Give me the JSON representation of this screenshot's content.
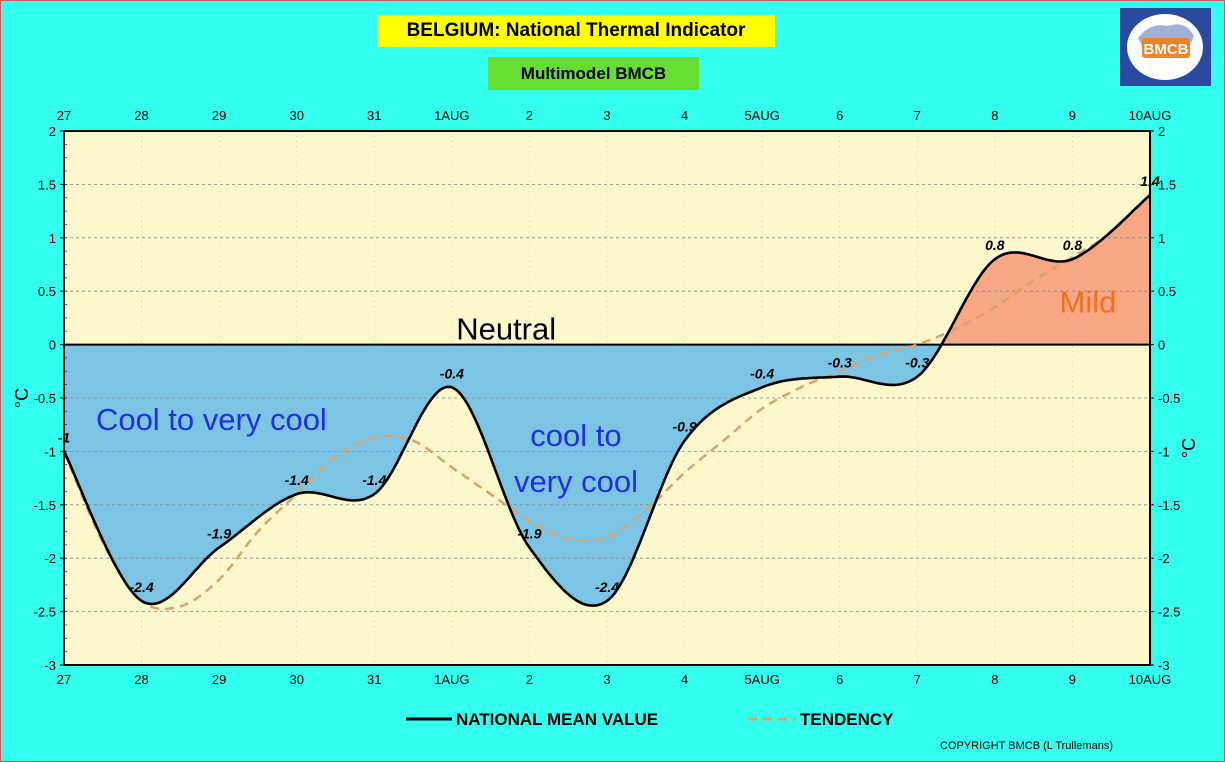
{
  "header": {
    "title": "BELGIUM:  National Thermal Indicator",
    "subtitle": "Multimodel BMCB",
    "logo_text": "BMCB"
  },
  "footer": {
    "copyright": "COPYRIGHT BMCB (L Trullemans)"
  },
  "colors": {
    "background": "#33ffee",
    "plot_bg": "#fdf8cc",
    "cool_fill": "#7cc4e4",
    "mild_fill": "#f7a784",
    "main_line": "#000000",
    "tendency_line": "#d9a46a",
    "annotation_cool": "#2030e0",
    "annotation_mild": "#f07020"
  },
  "chart_data": {
    "type": "line",
    "categories": [
      "27",
      "28",
      "29",
      "30",
      "31",
      "1AUG",
      "2",
      "3",
      "4",
      "5AUG",
      "6",
      "7",
      "8",
      "9",
      "10AUG"
    ],
    "ylim": [
      -3,
      2
    ],
    "yticks": [
      2,
      1.5,
      1,
      0.5,
      0,
      -0.5,
      -1,
      -1.5,
      -2,
      -2.5,
      -3
    ],
    "ylabel": "°C",
    "grid": true,
    "legend_position": "bottom",
    "series": [
      {
        "name": "NATIONAL MEAN VALUE",
        "x": [
          0,
          1,
          2,
          3,
          4,
          5,
          6,
          7,
          8,
          9,
          10,
          11,
          12,
          13,
          14
        ],
        "values": [
          -1,
          -2.4,
          -1.9,
          -1.4,
          -1.4,
          -0.4,
          -1.9,
          -2.4,
          -0.9,
          -0.4,
          -0.3,
          -0.3,
          0.8,
          0.8,
          1.4
        ],
        "labels": [
          "-1",
          "-2.4",
          "-1.9",
          "-1.4",
          "-1.4",
          "-0.4",
          "-1.9",
          "-2.4",
          "-0.9",
          "-0.4",
          "-0.3",
          "-0.3",
          "0.8",
          "0.8",
          "1.4"
        ]
      },
      {
        "name": "TENDENCY",
        "x": [
          0,
          0.5,
          1,
          1.5,
          2,
          2.5,
          3,
          3.5,
          4,
          4.5,
          5,
          5.5,
          6,
          6.5,
          7,
          7.5,
          8,
          8.5,
          9,
          9.5,
          10,
          10.5,
          11,
          11.5,
          12,
          12.5,
          13,
          13.5,
          14
        ],
        "values": [
          -1.0,
          -1.85,
          -2.4,
          -2.45,
          -2.2,
          -1.75,
          -1.4,
          -1.05,
          -0.87,
          -0.9,
          -1.15,
          -1.4,
          -1.65,
          -1.82,
          -1.8,
          -1.55,
          -1.2,
          -0.9,
          -0.6,
          -0.4,
          -0.25,
          -0.1,
          0.0,
          0.15,
          0.35,
          0.6,
          0.82,
          1.05,
          1.4
        ]
      }
    ],
    "annotations": [
      {
        "text": "Neutral",
        "x": 5.7,
        "y": 0.05,
        "color": "#000000"
      },
      {
        "text": "Cool to very cool",
        "x": 1.9,
        "y": -0.8,
        "color": "#2030e0"
      },
      {
        "text": "cool to",
        "x": 6.6,
        "y": -0.95,
        "color": "#2030e0"
      },
      {
        "text": "very cool",
        "x": 6.6,
        "y": -1.38,
        "color": "#2030e0"
      },
      {
        "text": "Mild",
        "x": 13.2,
        "y": 0.3,
        "color": "#f07020"
      }
    ]
  }
}
